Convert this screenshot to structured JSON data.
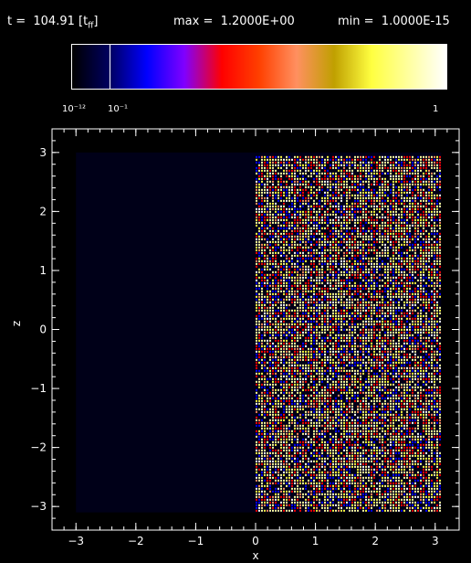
{
  "header": {
    "time_label": "t =  104.91 [t",
    "time_sub": "ff",
    "time_close": "]",
    "max_label": "max =  1.2000E+00",
    "min_label": "min =  1.0000E-15"
  },
  "colorbar": {
    "stops": [
      "#000000",
      "#000060",
      "#0000ff",
      "#8000ff",
      "#ff0000",
      "#ff4000",
      "#ff9060",
      "#c0a000",
      "#ffff40",
      "#ffffa0",
      "#ffffff"
    ],
    "marker_fraction": 0.1,
    "tick_labels": [
      "10⁻¹²",
      "10⁻¹",
      "1"
    ]
  },
  "chart_data": {
    "type": "heatmap",
    "title": "",
    "xlabel": "x",
    "ylabel": "z",
    "xlim": [
      -3.4,
      3.4
    ],
    "ylim": [
      -3.4,
      3.4
    ],
    "xticks": [
      -3,
      -2,
      -1,
      0,
      1,
      2,
      3
    ],
    "yticks": [
      -3,
      -2,
      -1,
      0,
      1,
      2,
      3
    ],
    "background_color": "#000018",
    "domain_x": [
      -3.0,
      3.1
    ],
    "domain_y": [
      -3.1,
      3.0
    ],
    "active_region_x": [
      0.0,
      3.1
    ],
    "active_region_colors": [
      "#ffffa0",
      "#ffff40",
      "#ff0000",
      "#0000ff",
      "#ff9060",
      "#ffffff"
    ],
    "min_value": "1.0000E-15",
    "max_value": "1.2000E+00",
    "time": "104.91"
  }
}
